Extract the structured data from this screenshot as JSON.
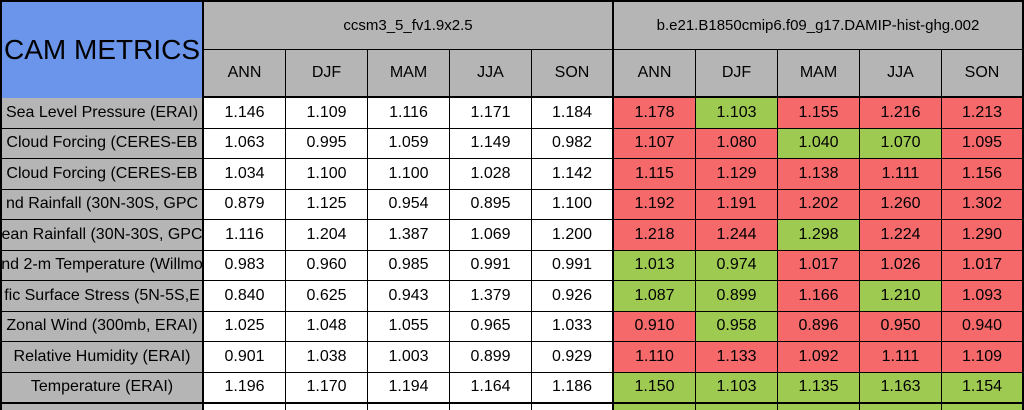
{
  "colors": {
    "blue": "#6B95EA",
    "header_gray": "#B5B5B5",
    "red": "#F5696B",
    "green": "#9FCA52",
    "white": "#FFFFFF",
    "border": "#000000"
  },
  "chart_data": {
    "type": "table",
    "title": "CAM METRICS",
    "column_groups": [
      {
        "label": "ccsm3_5_fv1.9x2.5"
      },
      {
        "label": "b.e21.B1850cmip6.f09_g17.DAMIP-hist-ghg.002"
      }
    ],
    "seasons": [
      "ANN",
      "DJF",
      "MAM",
      "JJA",
      "SON"
    ],
    "rows": [
      {
        "label": "Sea Level Pressure (ERAI)",
        "model1": [
          "1.146",
          "1.109",
          "1.116",
          "1.171",
          "1.184"
        ],
        "model2": [
          "1.178",
          "1.103",
          "1.155",
          "1.216",
          "1.213"
        ],
        "model2_colors": [
          "red",
          "green",
          "red",
          "red",
          "red"
        ]
      },
      {
        "label": "Cloud Forcing (CERES-EB",
        "model1": [
          "1.063",
          "0.995",
          "1.059",
          "1.149",
          "0.982"
        ],
        "model2": [
          "1.107",
          "1.080",
          "1.040",
          "1.070",
          "1.095"
        ],
        "model2_colors": [
          "red",
          "red",
          "green",
          "green",
          "red"
        ]
      },
      {
        "label": "Cloud Forcing (CERES-EB",
        "model1": [
          "1.034",
          "1.100",
          "1.100",
          "1.028",
          "1.142"
        ],
        "model2": [
          "1.115",
          "1.129",
          "1.138",
          "1.111",
          "1.156"
        ],
        "model2_colors": [
          "red",
          "red",
          "red",
          "red",
          "red"
        ]
      },
      {
        "label": "nd Rainfall (30N-30S, GPC",
        "model1": [
          "0.879",
          "1.125",
          "0.954",
          "0.895",
          "1.100"
        ],
        "model2": [
          "1.192",
          "1.191",
          "1.202",
          "1.260",
          "1.302"
        ],
        "model2_colors": [
          "red",
          "red",
          "red",
          "red",
          "red"
        ]
      },
      {
        "label": "ean Rainfall (30N-30S, GPC",
        "model1": [
          "1.116",
          "1.204",
          "1.387",
          "1.069",
          "1.200"
        ],
        "model2": [
          "1.218",
          "1.244",
          "1.298",
          "1.224",
          "1.290"
        ],
        "model2_colors": [
          "red",
          "red",
          "green",
          "red",
          "red"
        ]
      },
      {
        "label": "nd 2-m Temperature (Willmo",
        "model1": [
          "0.983",
          "0.960",
          "0.985",
          "0.991",
          "0.991"
        ],
        "model2": [
          "1.013",
          "0.974",
          "1.017",
          "1.026",
          "1.017"
        ],
        "model2_colors": [
          "green",
          "green",
          "red",
          "red",
          "red"
        ]
      },
      {
        "label": "fic Surface Stress (5N-5S,E",
        "model1": [
          "0.840",
          "0.625",
          "0.943",
          "1.379",
          "0.926"
        ],
        "model2": [
          "1.087",
          "0.899",
          "1.166",
          "1.210",
          "1.093"
        ],
        "model2_colors": [
          "green",
          "green",
          "red",
          "green",
          "red"
        ]
      },
      {
        "label": "Zonal Wind (300mb, ERAI)",
        "model1": [
          "1.025",
          "1.048",
          "1.055",
          "0.965",
          "1.033"
        ],
        "model2": [
          "0.910",
          "0.958",
          "0.896",
          "0.950",
          "0.940"
        ],
        "model2_colors": [
          "red",
          "green",
          "red",
          "red",
          "red"
        ]
      },
      {
        "label": "Relative Humidity (ERAI)",
        "model1": [
          "0.901",
          "1.038",
          "1.003",
          "0.899",
          "0.929"
        ],
        "model2": [
          "1.110",
          "1.133",
          "1.092",
          "1.111",
          "1.109"
        ],
        "model2_colors": [
          "red",
          "red",
          "red",
          "red",
          "red"
        ]
      },
      {
        "label": "Temperature (ERAI)",
        "model1": [
          "1.196",
          "1.170",
          "1.194",
          "1.164",
          "1.186"
        ],
        "model2": [
          "1.150",
          "1.103",
          "1.135",
          "1.163",
          "1.154"
        ],
        "model2_colors": [
          "green",
          "green",
          "green",
          "green",
          "green"
        ]
      }
    ],
    "partial_bottom_row": {
      "label": "",
      "model1_color": "white",
      "model2_color": "green"
    }
  }
}
